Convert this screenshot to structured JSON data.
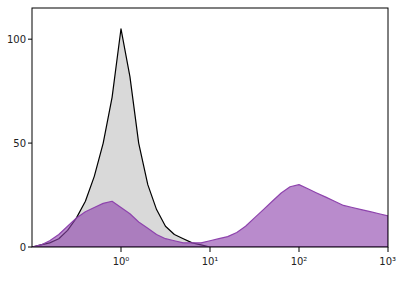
{
  "chart_data": {
    "type": "area",
    "log": "x",
    "x": [
      0.1,
      0.126,
      0.158,
      0.2,
      0.251,
      0.316,
      0.398,
      0.501,
      0.631,
      0.794,
      1,
      1.26,
      1.58,
      2,
      2.51,
      3.16,
      3.98,
      5.01,
      6.31,
      7.94,
      10,
      12.6,
      15.8,
      20,
      25.1,
      31.6,
      39.8,
      50.1,
      63.1,
      79.4,
      100,
      126,
      158,
      200,
      251,
      316,
      398,
      501,
      631,
      794,
      1000
    ],
    "series": [
      {
        "color": "#d9d9d9",
        "values": [
          0,
          1,
          2,
          4,
          8,
          14,
          22,
          34,
          50,
          72,
          105,
          82,
          50,
          30,
          18,
          10,
          6,
          4,
          2,
          1,
          0,
          0,
          0,
          0,
          0,
          0,
          0,
          0,
          0,
          0,
          0,
          0,
          0,
          0,
          0,
          0,
          0,
          0,
          0,
          0,
          0
        ]
      },
      {
        "color": "#8e44ad",
        "values": [
          0,
          1,
          3,
          6,
          10,
          14,
          17,
          19,
          21,
          22,
          19,
          16,
          12,
          9,
          6,
          4,
          3,
          2,
          2,
          2,
          3,
          4,
          5,
          7,
          10,
          14,
          18,
          22,
          26,
          29,
          30,
          28,
          26,
          24,
          22,
          20,
          19,
          18,
          17,
          16,
          15
        ]
      }
    ],
    "xlim": [
      0.1,
      1000
    ],
    "xticks": [
      {
        "value": 1,
        "label": "10⁰"
      },
      {
        "value": 10,
        "label": "10¹"
      },
      {
        "value": 100,
        "label": "10²"
      },
      {
        "value": 1000,
        "label": "10³"
      }
    ],
    "ylim": [
      0,
      115
    ],
    "yticks": [
      0,
      50,
      100
    ]
  }
}
